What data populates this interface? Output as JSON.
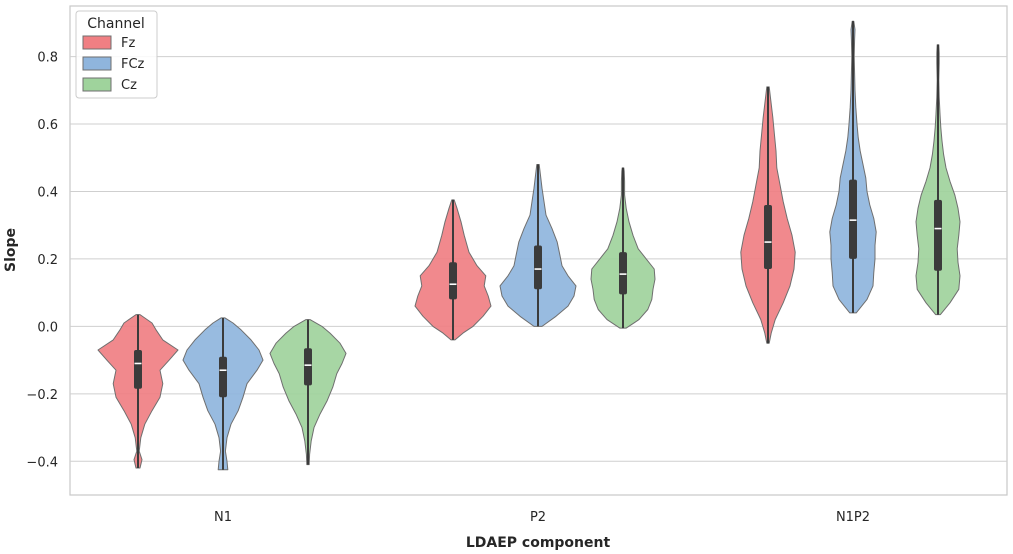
{
  "chart_data": {
    "type": "violin",
    "title": "",
    "xlabel": "LDAEP component",
    "ylabel": "Slope",
    "ylim": [
      -0.5,
      0.95
    ],
    "yticks": [
      -0.4,
      -0.2,
      0.0,
      0.2,
      0.4,
      0.6,
      0.8
    ],
    "ytick_labels": [
      "−0.4",
      "−0.2",
      "0.0",
      "0.2",
      "0.4",
      "0.6",
      "0.8"
    ],
    "grid": "horizontal",
    "categories": [
      "N1",
      "P2",
      "N1P2"
    ],
    "legend": {
      "title": "Channel",
      "placement": "top-left",
      "entries": [
        "Fz",
        "FCz",
        "Cz"
      ]
    },
    "series": [
      {
        "name": "Fz",
        "color": "#F07F83",
        "groups": [
          {
            "category": "N1",
            "min": -0.42,
            "q1": -0.185,
            "median": -0.11,
            "q3": -0.07,
            "max": 0.035,
            "profile": [
              [
                -0.42,
                0.05
              ],
              [
                -0.395,
                0.1
              ],
              [
                -0.37,
                0.03
              ],
              [
                -0.33,
                0.07
              ],
              [
                -0.29,
                0.17
              ],
              [
                -0.25,
                0.35
              ],
              [
                -0.21,
                0.55
              ],
              [
                -0.17,
                0.62
              ],
              [
                -0.13,
                0.55
              ],
              [
                -0.1,
                0.78
              ],
              [
                -0.07,
                1.0
              ],
              [
                -0.04,
                0.62
              ],
              [
                -0.01,
                0.45
              ],
              [
                0.01,
                0.35
              ],
              [
                0.035,
                0.05
              ]
            ]
          },
          {
            "category": "P2",
            "min": -0.04,
            "q1": 0.08,
            "median": 0.125,
            "q3": 0.19,
            "max": 0.375,
            "profile": [
              [
                -0.04,
                0.05
              ],
              [
                -0.02,
                0.25
              ],
              [
                0.0,
                0.5
              ],
              [
                0.03,
                0.75
              ],
              [
                0.06,
                0.95
              ],
              [
                0.09,
                0.88
              ],
              [
                0.12,
                0.78
              ],
              [
                0.15,
                0.82
              ],
              [
                0.18,
                0.6
              ],
              [
                0.22,
                0.4
              ],
              [
                0.27,
                0.28
              ],
              [
                0.31,
                0.2
              ],
              [
                0.35,
                0.1
              ],
              [
                0.375,
                0.03
              ]
            ]
          },
          {
            "category": "N1P2",
            "min": -0.05,
            "q1": 0.17,
            "median": 0.25,
            "q3": 0.36,
            "max": 0.71,
            "profile": [
              [
                -0.05,
                0.03
              ],
              [
                -0.02,
                0.08
              ],
              [
                0.02,
                0.18
              ],
              [
                0.07,
                0.38
              ],
              [
                0.12,
                0.55
              ],
              [
                0.17,
                0.65
              ],
              [
                0.22,
                0.68
              ],
              [
                0.27,
                0.6
              ],
              [
                0.32,
                0.48
              ],
              [
                0.37,
                0.38
              ],
              [
                0.42,
                0.3
              ],
              [
                0.47,
                0.22
              ],
              [
                0.52,
                0.2
              ],
              [
                0.57,
                0.16
              ],
              [
                0.62,
                0.12
              ],
              [
                0.67,
                0.07
              ],
              [
                0.71,
                0.03
              ]
            ]
          }
        ]
      },
      {
        "name": "FCz",
        "color": "#8FB5DD",
        "groups": [
          {
            "category": "N1",
            "min": -0.425,
            "q1": -0.21,
            "median": -0.13,
            "q3": -0.09,
            "max": 0.025,
            "profile": [
              [
                -0.425,
                0.12
              ],
              [
                -0.4,
                0.1
              ],
              [
                -0.37,
                0.06
              ],
              [
                -0.33,
                0.1
              ],
              [
                -0.29,
                0.2
              ],
              [
                -0.25,
                0.38
              ],
              [
                -0.21,
                0.5
              ],
              [
                -0.17,
                0.6
              ],
              [
                -0.13,
                0.85
              ],
              [
                -0.1,
                1.0
              ],
              [
                -0.07,
                0.9
              ],
              [
                -0.04,
                0.7
              ],
              [
                -0.01,
                0.45
              ],
              [
                0.01,
                0.25
              ],
              [
                0.025,
                0.05
              ]
            ]
          },
          {
            "category": "P2",
            "min": 0.0,
            "q1": 0.11,
            "median": 0.17,
            "q3": 0.24,
            "max": 0.48,
            "profile": [
              [
                0.0,
                0.1
              ],
              [
                0.03,
                0.45
              ],
              [
                0.06,
                0.75
              ],
              [
                0.09,
                0.9
              ],
              [
                0.12,
                0.95
              ],
              [
                0.15,
                0.75
              ],
              [
                0.18,
                0.6
              ],
              [
                0.21,
                0.55
              ],
              [
                0.25,
                0.48
              ],
              [
                0.29,
                0.35
              ],
              [
                0.33,
                0.2
              ],
              [
                0.37,
                0.15
              ],
              [
                0.41,
                0.1
              ],
              [
                0.45,
                0.06
              ],
              [
                0.48,
                0.03
              ]
            ]
          },
          {
            "category": "N1P2",
            "min": 0.04,
            "q1": 0.2,
            "median": 0.315,
            "q3": 0.435,
            "max": 0.905,
            "profile": [
              [
                0.04,
                0.08
              ],
              [
                0.08,
                0.35
              ],
              [
                0.12,
                0.5
              ],
              [
                0.16,
                0.52
              ],
              [
                0.2,
                0.55
              ],
              [
                0.24,
                0.55
              ],
              [
                0.28,
                0.58
              ],
              [
                0.32,
                0.52
              ],
              [
                0.36,
                0.42
              ],
              [
                0.4,
                0.35
              ],
              [
                0.44,
                0.32
              ],
              [
                0.48,
                0.25
              ],
              [
                0.52,
                0.18
              ],
              [
                0.56,
                0.13
              ],
              [
                0.6,
                0.1
              ],
              [
                0.65,
                0.07
              ],
              [
                0.7,
                0.05
              ],
              [
                0.75,
                0.04
              ],
              [
                0.8,
                0.03
              ],
              [
                0.85,
                0.04
              ],
              [
                0.88,
                0.05
              ],
              [
                0.905,
                0.02
              ]
            ]
          }
        ]
      },
      {
        "name": "Cz",
        "color": "#9FD39C",
        "groups": [
          {
            "category": "N1",
            "min": -0.41,
            "q1": -0.175,
            "median": -0.115,
            "q3": -0.065,
            "max": 0.02,
            "profile": [
              [
                -0.41,
                0.03
              ],
              [
                -0.38,
                0.04
              ],
              [
                -0.34,
                0.08
              ],
              [
                -0.3,
                0.15
              ],
              [
                -0.26,
                0.3
              ],
              [
                -0.22,
                0.48
              ],
              [
                -0.18,
                0.62
              ],
              [
                -0.14,
                0.72
              ],
              [
                -0.11,
                0.85
              ],
              [
                -0.08,
                0.95
              ],
              [
                -0.05,
                0.8
              ],
              [
                -0.02,
                0.55
              ],
              [
                0.0,
                0.35
              ],
              [
                0.02,
                0.05
              ]
            ]
          },
          {
            "category": "P2",
            "min": -0.005,
            "q1": 0.095,
            "median": 0.155,
            "q3": 0.22,
            "max": 0.47,
            "profile": [
              [
                -0.005,
                0.08
              ],
              [
                0.02,
                0.4
              ],
              [
                0.05,
                0.62
              ],
              [
                0.08,
                0.72
              ],
              [
                0.11,
                0.75
              ],
              [
                0.14,
                0.8
              ],
              [
                0.17,
                0.78
              ],
              [
                0.2,
                0.58
              ],
              [
                0.23,
                0.38
              ],
              [
                0.27,
                0.25
              ],
              [
                0.31,
                0.15
              ],
              [
                0.35,
                0.08
              ],
              [
                0.39,
                0.04
              ],
              [
                0.43,
                0.04
              ],
              [
                0.46,
                0.03
              ],
              [
                0.47,
                0.02
              ]
            ]
          },
          {
            "category": "N1P2",
            "min": 0.035,
            "q1": 0.165,
            "median": 0.29,
            "q3": 0.375,
            "max": 0.835,
            "profile": [
              [
                0.035,
                0.06
              ],
              [
                0.07,
                0.3
              ],
              [
                0.11,
                0.52
              ],
              [
                0.15,
                0.55
              ],
              [
                0.19,
                0.5
              ],
              [
                0.23,
                0.48
              ],
              [
                0.27,
                0.52
              ],
              [
                0.31,
                0.55
              ],
              [
                0.35,
                0.5
              ],
              [
                0.39,
                0.42
              ],
              [
                0.43,
                0.3
              ],
              [
                0.47,
                0.2
              ],
              [
                0.51,
                0.14
              ],
              [
                0.55,
                0.1
              ],
              [
                0.59,
                0.07
              ],
              [
                0.63,
                0.05
              ],
              [
                0.68,
                0.03
              ],
              [
                0.73,
                0.02
              ],
              [
                0.78,
                0.03
              ],
              [
                0.81,
                0.03
              ],
              [
                0.835,
                0.02
              ]
            ]
          }
        ]
      }
    ]
  }
}
